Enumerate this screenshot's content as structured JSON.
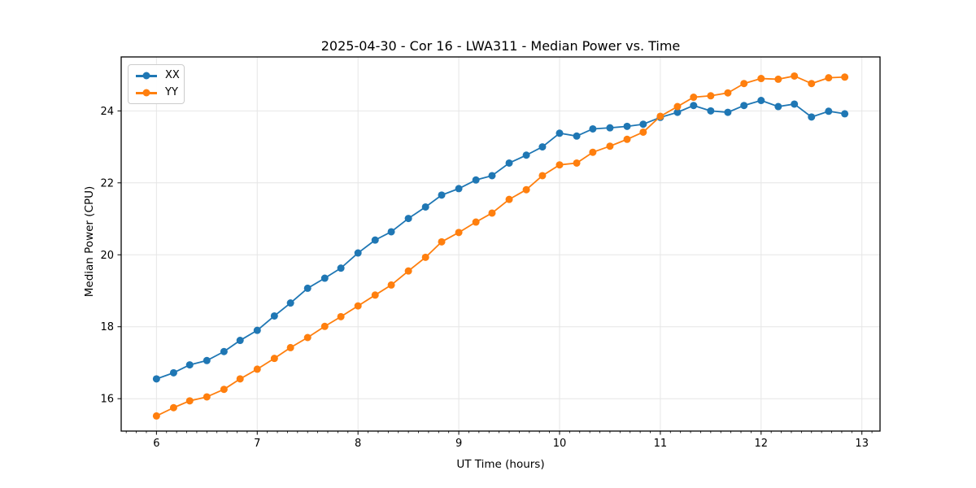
{
  "chart_data": {
    "type": "line",
    "title": "2025-04-30 - Cor 16 - LWA311 - Median Power vs. Time",
    "xlabel": "UT Time (hours)",
    "ylabel": "Median Power (CPU)",
    "xlim": [
      5.65,
      13.18
    ],
    "ylim": [
      15.1,
      25.5
    ],
    "xticks": [
      6,
      7,
      8,
      9,
      10,
      11,
      12,
      13
    ],
    "yticks": [
      16,
      18,
      20,
      22,
      24
    ],
    "x_minor_step": 0.1,
    "grid": true,
    "grid_color": "#e6e6e6",
    "legend_position": "upper-left",
    "x": [
      6.0,
      6.17,
      6.33,
      6.5,
      6.67,
      6.83,
      7.0,
      7.17,
      7.33,
      7.5,
      7.67,
      7.83,
      8.0,
      8.17,
      8.33,
      8.5,
      8.67,
      8.83,
      9.0,
      9.17,
      9.33,
      9.5,
      9.67,
      9.83,
      10.0,
      10.17,
      10.33,
      10.5,
      10.67,
      10.83,
      11.0,
      11.17,
      11.33,
      11.5,
      11.67,
      11.83,
      12.0,
      12.17,
      12.33,
      12.5,
      12.67,
      12.83
    ],
    "series": [
      {
        "name": "XX",
        "color": "#1f77b4",
        "values": [
          16.55,
          16.72,
          16.94,
          17.06,
          17.31,
          17.62,
          17.9,
          18.3,
          18.66,
          19.07,
          19.35,
          19.63,
          20.05,
          20.41,
          20.64,
          21.01,
          21.33,
          21.66,
          21.84,
          22.08,
          22.2,
          22.55,
          22.77,
          23.0,
          23.38,
          23.3,
          23.5,
          23.53,
          23.57,
          23.63,
          23.82,
          23.96,
          24.15,
          24.0,
          23.96,
          24.15,
          24.29,
          24.12,
          24.19,
          23.83,
          23.99,
          23.92
        ]
      },
      {
        "name": "YY",
        "color": "#ff7f0e",
        "values": [
          15.52,
          15.75,
          15.94,
          16.05,
          16.26,
          16.55,
          16.82,
          17.12,
          17.42,
          17.7,
          18.01,
          18.28,
          18.58,
          18.88,
          19.16,
          19.55,
          19.93,
          20.36,
          20.62,
          20.91,
          21.16,
          21.54,
          21.81,
          22.2,
          22.5,
          22.55,
          22.85,
          23.02,
          23.21,
          23.41,
          23.85,
          24.12,
          24.38,
          24.42,
          24.5,
          24.76,
          24.9,
          24.88,
          24.97,
          24.76,
          24.92,
          24.94
        ]
      }
    ]
  },
  "legend": {
    "items": [
      {
        "label": "XX",
        "color": "#1f77b4"
      },
      {
        "label": "YY",
        "color": "#ff7f0e"
      }
    ]
  }
}
